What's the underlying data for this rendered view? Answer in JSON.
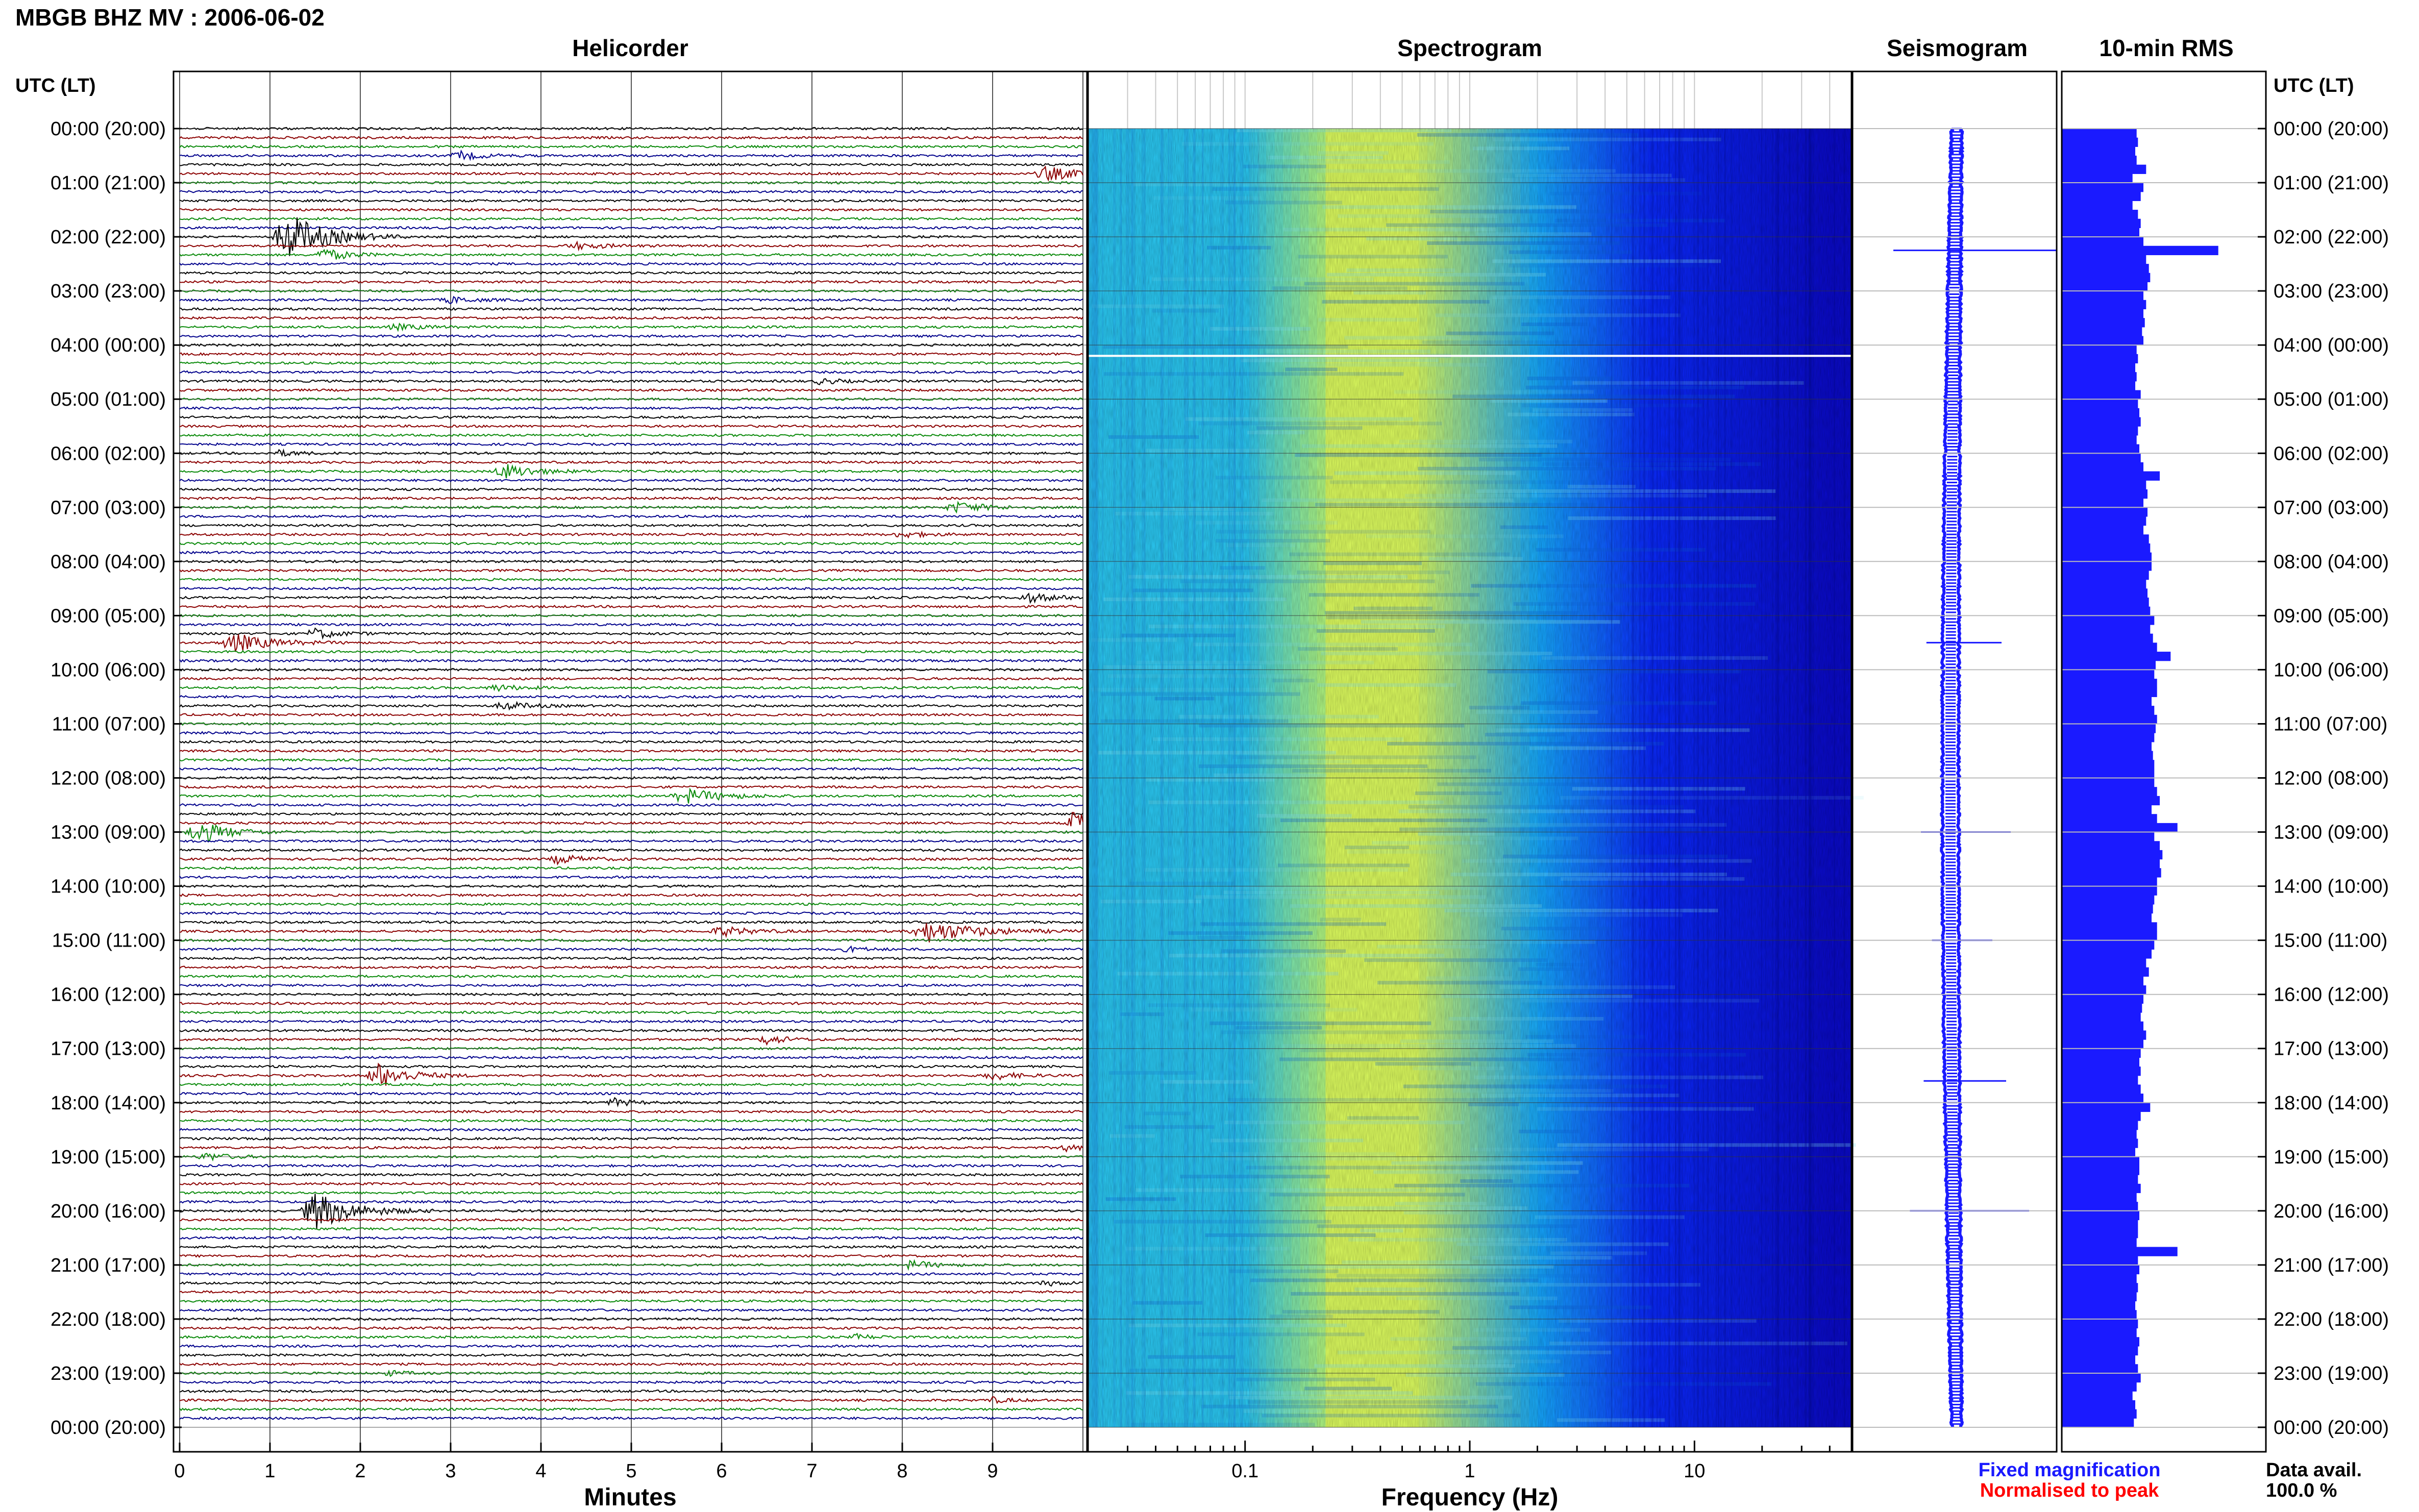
{
  "header": {
    "title": "MBGB BHZ MV : 2006-06-02",
    "utc_label_left": "UTC (LT)",
    "utc_label_right": "UTC (LT)"
  },
  "panels": {
    "helicorder": "Helicorder",
    "spectrogram": "Spectrogram",
    "seismogram": "Seismogram",
    "rms": "10-min RMS"
  },
  "axes": {
    "minutes_label": "Minutes",
    "minutes_ticks": [
      "0",
      "1",
      "2",
      "3",
      "4",
      "5",
      "6",
      "7",
      "8",
      "9"
    ],
    "frequency_label": "Frequency (Hz)",
    "frequency_ticks": [
      "0.1",
      "1",
      "10"
    ]
  },
  "time_labels": [
    "00:00 (20:00)",
    "01:00 (21:00)",
    "02:00 (22:00)",
    "03:00 (23:00)",
    "04:00 (00:00)",
    "05:00 (01:00)",
    "06:00 (02:00)",
    "07:00 (03:00)",
    "08:00 (04:00)",
    "09:00 (05:00)",
    "10:00 (06:00)",
    "11:00 (07:00)",
    "12:00 (08:00)",
    "13:00 (09:00)",
    "14:00 (10:00)",
    "15:00 (11:00)",
    "16:00 (12:00)",
    "17:00 (13:00)",
    "18:00 (14:00)",
    "19:00 (15:00)",
    "20:00 (16:00)",
    "21:00 (17:00)",
    "22:00 (18:00)",
    "23:00 (19:00)",
    "00:00 (20:00)"
  ],
  "legend": {
    "fixed": "Fixed magnification",
    "normalised": "Normalised to peak",
    "fixed_color": "#1a1aff",
    "normalised_color": "#ff0000"
  },
  "data_avail": {
    "label": "Data avail.",
    "value": "100.0 %"
  },
  "colors": {
    "trace_cycle": [
      "#000000",
      "#8b0000",
      "#0a8a0a",
      "#00008b"
    ],
    "bar": "#1a1aff",
    "seismogram": "#1a1aff"
  },
  "chart_data": {
    "type": "bar",
    "title": "10-min RMS",
    "categories_note": "",
    "rms_values": [
      0.55,
      0.56,
      0.54,
      0.55,
      0.62,
      0.52,
      0.6,
      0.58,
      0.52,
      0.56,
      0.58,
      0.57,
      0.6,
      1.15,
      0.62,
      0.64,
      0.65,
      0.63,
      0.6,
      0.62,
      0.6,
      0.61,
      0.59,
      0.6,
      0.55,
      0.56,
      0.54,
      0.55,
      0.54,
      0.58,
      0.56,
      0.57,
      0.58,
      0.56,
      0.55,
      0.57,
      0.58,
      0.6,
      0.72,
      0.62,
      0.63,
      0.6,
      0.63,
      0.62,
      0.6,
      0.64,
      0.65,
      0.66,
      0.66,
      0.64,
      0.62,
      0.63,
      0.64,
      0.65,
      0.68,
      0.65,
      0.67,
      0.7,
      0.8,
      0.69,
      0.68,
      0.7,
      0.7,
      0.66,
      0.68,
      0.7,
      0.69,
      0.68,
      0.66,
      0.67,
      0.68,
      0.68,
      0.68,
      0.7,
      0.72,
      0.66,
      0.7,
      0.85,
      0.68,
      0.72,
      0.74,
      0.72,
      0.73,
      0.7,
      0.7,
      0.68,
      0.67,
      0.66,
      0.7,
      0.7,
      0.68,
      0.66,
      0.62,
      0.64,
      0.6,
      0.62,
      0.6,
      0.59,
      0.58,
      0.6,
      0.62,
      0.6,
      0.58,
      0.57,
      0.58,
      0.56,
      0.58,
      0.6,
      0.65,
      0.58,
      0.56,
      0.55,
      0.56,
      0.54,
      0.57,
      0.57,
      0.56,
      0.58,
      0.55,
      0.56,
      0.57,
      0.56,
      0.56,
      0.55,
      0.85,
      0.56,
      0.57,
      0.55,
      0.56,
      0.55,
      0.54,
      0.55,
      0.56,
      0.55,
      0.57,
      0.56,
      0.54,
      0.56,
      0.58,
      0.55,
      0.52,
      0.54,
      0.55,
      0.53
    ],
    "helicorder": {
      "xlabel": "Minutes",
      "xlim": [
        0,
        10
      ],
      "rows": 144,
      "events": [
        {
          "row": 3,
          "minute": 3.1,
          "amp": 8,
          "width": 0.4
        },
        {
          "row": 5,
          "minute": 9.6,
          "amp": 14,
          "width": 0.5
        },
        {
          "row": 12,
          "minute": 1.2,
          "amp": 48,
          "width": 0.6
        },
        {
          "row": 14,
          "minute": 1.6,
          "amp": 12,
          "width": 0.4
        },
        {
          "row": 13,
          "minute": 4.4,
          "amp": 6,
          "width": 0.5
        },
        {
          "row": 19,
          "minute": 3.0,
          "amp": 6,
          "width": 0.4
        },
        {
          "row": 22,
          "minute": 2.4,
          "amp": 5,
          "width": 0.5
        },
        {
          "row": 28,
          "minute": 7.1,
          "amp": 6,
          "width": 0.3
        },
        {
          "row": 36,
          "minute": 1.1,
          "amp": 5,
          "width": 0.4
        },
        {
          "row": 38,
          "minute": 3.6,
          "amp": 14,
          "width": 0.5
        },
        {
          "row": 42,
          "minute": 8.6,
          "amp": 10,
          "width": 0.5
        },
        {
          "row": 45,
          "minute": 8.0,
          "amp": 6,
          "width": 0.4
        },
        {
          "row": 52,
          "minute": 9.4,
          "amp": 8,
          "width": 0.5
        },
        {
          "row": 56,
          "minute": 1.5,
          "amp": 10,
          "width": 0.4
        },
        {
          "row": 57,
          "minute": 0.6,
          "amp": 18,
          "width": 0.6
        },
        {
          "row": 62,
          "minute": 3.5,
          "amp": 6,
          "width": 0.4
        },
        {
          "row": 64,
          "minute": 3.6,
          "amp": 8,
          "width": 0.4
        },
        {
          "row": 74,
          "minute": 5.6,
          "amp": 14,
          "width": 0.6
        },
        {
          "row": 78,
          "minute": 0.2,
          "amp": 22,
          "width": 0.5
        },
        {
          "row": 77,
          "minute": 9.9,
          "amp": 24,
          "width": 0.3
        },
        {
          "row": 81,
          "minute": 4.2,
          "amp": 9,
          "width": 0.4
        },
        {
          "row": 89,
          "minute": 6.0,
          "amp": 9,
          "width": 0.5
        },
        {
          "row": 89,
          "minute": 8.3,
          "amp": 20,
          "width": 0.8
        },
        {
          "row": 91,
          "minute": 7.4,
          "amp": 5,
          "width": 0.3
        },
        {
          "row": 101,
          "minute": 6.5,
          "amp": 10,
          "width": 0.3
        },
        {
          "row": 105,
          "minute": 2.2,
          "amp": 24,
          "width": 0.5
        },
        {
          "row": 105,
          "minute": 9.0,
          "amp": 8,
          "width": 0.4
        },
        {
          "row": 108,
          "minute": 4.8,
          "amp": 8,
          "width": 0.3
        },
        {
          "row": 113,
          "minute": 9.8,
          "amp": 6,
          "width": 0.3
        },
        {
          "row": 114,
          "minute": 0.3,
          "amp": 7,
          "width": 0.4
        },
        {
          "row": 120,
          "minute": 1.5,
          "amp": 38,
          "width": 0.6
        },
        {
          "row": 126,
          "minute": 8.1,
          "amp": 8,
          "width": 0.4
        },
        {
          "row": 128,
          "minute": 9.6,
          "amp": 5,
          "width": 0.3
        },
        {
          "row": 134,
          "minute": 7.5,
          "amp": 5,
          "width": 0.3
        },
        {
          "row": 138,
          "minute": 2.3,
          "amp": 5,
          "width": 0.3
        },
        {
          "row": 141,
          "minute": 9.0,
          "amp": 5,
          "width": 0.3
        }
      ]
    },
    "spectrogram": {
      "xlabel": "Frequency (Hz)",
      "xscale": "log",
      "xlim": [
        0.02,
        50
      ],
      "peak_frequency_hz": 0.4,
      "rolloff_frequency_hz": 2.0
    },
    "seismogram": {
      "title": "Seismogram",
      "spikes": [
        {
          "hour": 2.25,
          "size": 1.0
        },
        {
          "hour": 9.5,
          "size": 0.4
        },
        {
          "hour": 13.0,
          "size": 0.5
        },
        {
          "hour": 15.0,
          "size": 0.3
        },
        {
          "hour": 17.6,
          "size": 0.45
        },
        {
          "hour": 20.0,
          "size": 0.7
        }
      ]
    }
  }
}
